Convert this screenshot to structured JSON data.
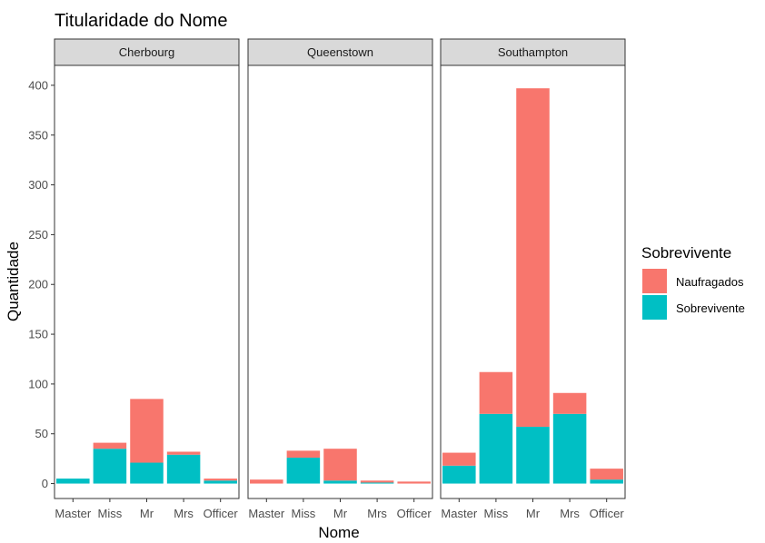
{
  "chart_data": {
    "type": "bar",
    "stacked": true,
    "title": "Titularidade do Nome",
    "xlabel": "Nome",
    "ylabel": "Quantidade",
    "ylim": [
      -15,
      420
    ],
    "yticks": [
      0,
      50,
      100,
      150,
      200,
      250,
      300,
      350,
      400
    ],
    "categories": [
      "Master",
      "Miss",
      "Mr",
      "Mrs",
      "Officer"
    ],
    "grid": false,
    "legend": {
      "title": "Sobrevivente",
      "placement": "right",
      "entries": [
        {
          "label": "Naufragados",
          "color": "#F8766D"
        },
        {
          "label": "Sobrevivente",
          "color": "#00BFC4"
        }
      ]
    },
    "panels": [
      {
        "facet": "Cherbourg",
        "series": [
          {
            "name": "Sobrevivente",
            "values": [
              5,
              35,
              21,
              29,
              3
            ]
          },
          {
            "name": "Naufragados",
            "values": [
              0,
              6,
              64,
              3,
              2
            ]
          }
        ]
      },
      {
        "facet": "Queenstown",
        "series": [
          {
            "name": "Sobrevivente",
            "values": [
              0,
              26,
              3,
              1,
              0
            ]
          },
          {
            "name": "Naufragados",
            "values": [
              4,
              7,
              32,
              2,
              2
            ]
          }
        ]
      },
      {
        "facet": "Southampton",
        "series": [
          {
            "name": "Sobrevivente",
            "values": [
              18,
              70,
              57,
              70,
              4
            ]
          },
          {
            "name": "Naufragados",
            "values": [
              13,
              42,
              340,
              21,
              11
            ]
          }
        ]
      }
    ]
  }
}
